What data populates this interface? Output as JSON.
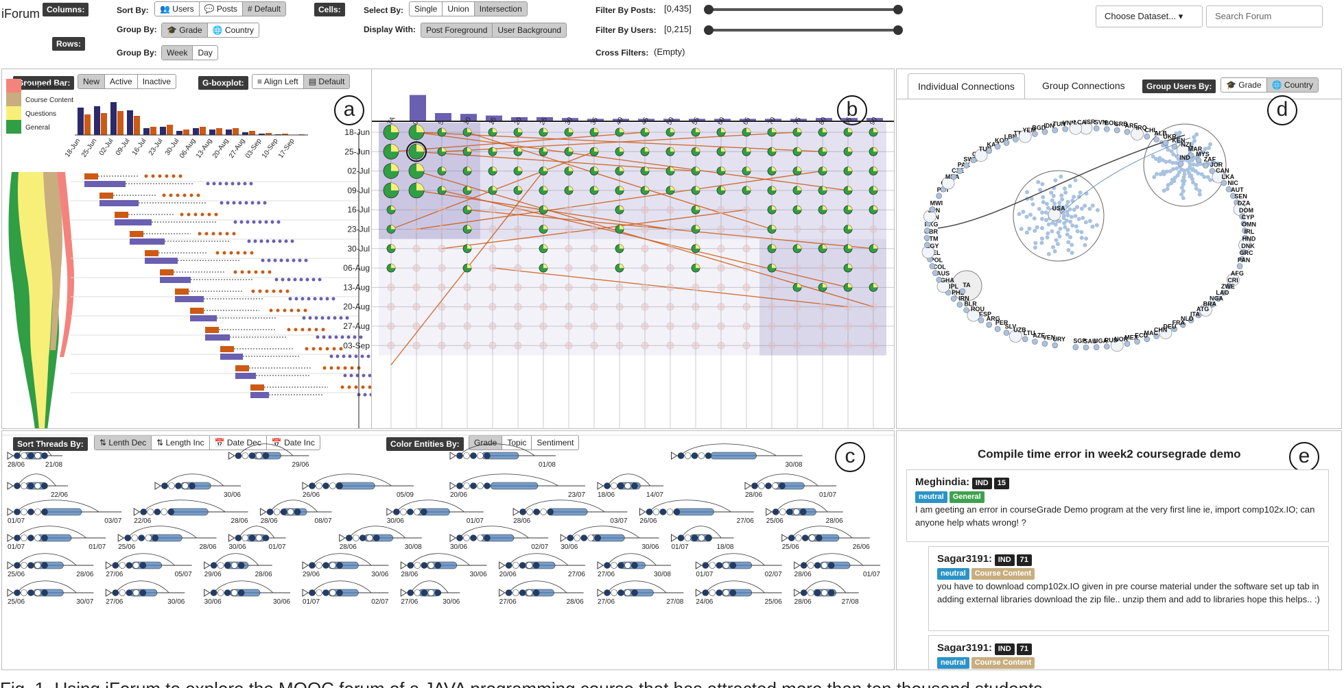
{
  "app": {
    "title": "iForum"
  },
  "toolbar": {
    "columns_tag": "Columns:",
    "rows_tag": "Rows:",
    "cells_tag": "Cells:",
    "sort_by_label": "Sort By:",
    "sort_by": [
      "Users",
      "Posts",
      "# Default"
    ],
    "group_by_label": "Group By:",
    "group_by": [
      "Grade",
      "Country"
    ],
    "row_group_by_label": "Group By:",
    "row_group_by": [
      "Week",
      "Day"
    ],
    "select_by_label": "Select By:",
    "select_by": [
      "Single",
      "Union",
      "Intersection"
    ],
    "display_with_label": "Display With:",
    "display_with": [
      "Post Foreground",
      "User Background"
    ],
    "filter_posts_label": "Filter By Posts:",
    "filter_posts_value": "[0,435]",
    "filter_users_label": "Filter By Users:",
    "filter_users_value": "[0,215]",
    "cross_filters_label": "Cross Filters:",
    "cross_filters_value": "(Empty)",
    "choose_dataset": "Choose Dataset...",
    "search_placeholder": "Search Forum"
  },
  "panel_a": {
    "label": "a",
    "grouped_bar_tag": "Grouped Bar:",
    "grouped_bar_opts": [
      "New",
      "Active",
      "Inactive"
    ],
    "gboxplot_tag": "G-boxplot:",
    "gboxplot_opts": [
      "Align Left",
      "Default"
    ],
    "legend": [
      {
        "name": "Assessment",
        "color": "#f4837d"
      },
      {
        "name": "Course Content",
        "color": "#c8ad7f"
      },
      {
        "name": "Questions",
        "color": "#f8ef78"
      },
      {
        "name": "General",
        "color": "#2f9e44"
      }
    ],
    "week_ticks": [
      "18-Jun",
      "25-Jun",
      "02-Jul",
      "09-Jul",
      "16-Jul",
      "23-Jul",
      "30-Jul",
      "06-Aug",
      "13-Aug",
      "20-Aug",
      "27-Aug",
      "03-Sep",
      "10-Sep",
      "17-Sep"
    ],
    "bars_new": [
      40,
      42,
      48,
      36,
      10,
      12,
      6,
      10,
      8,
      8,
      4,
      2,
      1,
      0
    ],
    "bars_active": [
      30,
      32,
      35,
      28,
      12,
      15,
      8,
      12,
      10,
      10,
      6,
      3,
      2,
      1
    ]
  },
  "panel_b": {
    "label": "b",
    "columns": [
      "TA",
      "0",
      "5",
      "10",
      "15",
      "20",
      "25",
      "30",
      "35",
      "40",
      "45",
      "50",
      "55",
      "60",
      "65",
      "70",
      "75",
      "80",
      "85",
      "90"
    ],
    "col_bars": [
      0,
      32,
      10,
      9,
      7,
      5,
      5,
      4,
      3,
      3,
      3,
      3,
      3,
      3,
      3,
      3,
      3,
      4,
      4,
      4
    ],
    "rows": [
      "18-Jun",
      "25-Jun",
      "02-Jul",
      "09-Jul",
      "16-Jul",
      "23-Jul",
      "30-Jul",
      "06-Aug",
      "13-Aug",
      "20-Aug",
      "27-Aug",
      "03-Sep"
    ]
  },
  "panel_c": {
    "label": "c",
    "sort_threads_tag": "Sort Threads By:",
    "sort_opts": [
      "Lenth Dec",
      "Length Inc",
      "Date Dec",
      "Date Inc"
    ],
    "color_entities_tag": "Color Entities By:",
    "color_opts": [
      "Grade",
      "Topic",
      "Sentiment"
    ],
    "threads": [
      {
        "s": "28/06",
        "e": "21/08"
      },
      {
        "s": "",
        "e": "29/06"
      },
      {
        "s": "",
        "e": "01/08"
      },
      {
        "s": "",
        "e": "30/08"
      },
      {
        "s": "",
        "e": "22/06"
      },
      {
        "s": "",
        "e": "30/06"
      },
      {
        "s": "26/06",
        "e": "05/09"
      },
      {
        "s": "20/06",
        "e": "23/07"
      },
      {
        "s": "18/06",
        "e": "14/07"
      },
      {
        "s": "28/06",
        "e": "01/07"
      },
      {
        "s": "01/07",
        "e": "03/07"
      },
      {
        "s": "22/06",
        "e": "28/06"
      },
      {
        "s": "28/06",
        "e": "08/07"
      },
      {
        "s": "30/06",
        "e": "01/07"
      },
      {
        "s": "28/06",
        "e": "03/07"
      },
      {
        "s": "26/06",
        "e": "27/06"
      },
      {
        "s": "25/06",
        "e": "28/06"
      },
      {
        "s": "01/07",
        "e": "01/07"
      },
      {
        "s": "25/06",
        "e": "28/06"
      },
      {
        "s": "30/06",
        "e": "01/07"
      },
      {
        "s": "28/06",
        "e": "30/08"
      },
      {
        "s": "30/06",
        "e": "02/07"
      },
      {
        "s": "30/06",
        "e": "30/06"
      },
      {
        "s": "01/07",
        "e": "18/08"
      },
      {
        "s": "25/06",
        "e": "26/06"
      },
      {
        "s": "25/06",
        "e": "28/06"
      },
      {
        "s": "27/06",
        "e": "05/07"
      },
      {
        "s": "29/06",
        "e": "28/06"
      },
      {
        "s": "29/06",
        "e": "30/06"
      },
      {
        "s": "28/06",
        "e": "30/06"
      },
      {
        "s": "20/06",
        "e": "27/06"
      },
      {
        "s": "27/06",
        "e": "30/08"
      },
      {
        "s": "01/07",
        "e": "02/07"
      },
      {
        "s": "28/06",
        "e": "01/07"
      },
      {
        "s": "25/06",
        "e": "30/07"
      },
      {
        "s": "27/06",
        "e": "30/06"
      },
      {
        "s": "30/06",
        "e": "30/06"
      },
      {
        "s": "01/07",
        "e": "02/07"
      },
      {
        "s": "27/06",
        "e": "30/06"
      },
      {
        "s": "27/06",
        "e": "28/06"
      },
      {
        "s": "27/06",
        "e": "27/08"
      },
      {
        "s": "24/06",
        "e": "25/06"
      },
      {
        "s": "28/06",
        "e": "27/08"
      }
    ]
  },
  "panel_d": {
    "label": "d",
    "tabs": [
      "Individual Connections",
      "Group Connections"
    ],
    "group_users_tag": "Group Users By:",
    "group_users_opts": [
      "Grade",
      "Country"
    ],
    "countries": [
      "ISR",
      "SVN",
      "BOL",
      "SRB",
      "ARE",
      "IRQ",
      "CHL",
      "ALB",
      "UKR",
      "KEN",
      "NZL",
      "MAR",
      "MYS",
      "ZAF",
      "JOR",
      "CAN",
      "LKA",
      "NIC",
      "AUT",
      "SEN",
      "DZA",
      "DOM",
      "CYP",
      "OMN",
      "IRL",
      "HND",
      "DNK",
      "GRC",
      "PAN",
      "IND",
      "AFG",
      "CRI",
      "ZWE",
      "LAO",
      "NGA",
      "BRA",
      "ATG",
      "ITA",
      "NLD",
      "FRA",
      "DEU",
      "CHN",
      "MAC",
      "ECU",
      "MEX",
      "NOR",
      "RUS",
      "UGA",
      "SAU",
      "SGP",
      "USA",
      "URY",
      "VEN",
      "AZE",
      "LTU",
      "UZB",
      "SLV",
      "PER",
      "ARG",
      "ESP",
      "ROU",
      "BLR",
      "IRN",
      "PHL",
      "NPL",
      "GHA",
      "AUS",
      "COL",
      "POL",
      "BEL",
      "EGY",
      "GTM",
      "GBR",
      "HKG",
      "HUN",
      "JPN",
      "MWI",
      "TA",
      "PRT",
      "CHE",
      "MDA",
      "CZE",
      "PAK",
      "SWE",
      "GIN",
      "TUR",
      "KAZ",
      "KOR",
      "LBN",
      "TTO",
      "YEM",
      "BGD",
      "IDN",
      "TUN",
      "VNM",
      "LCA"
    ]
  },
  "panel_e": {
    "label": "e",
    "thread_title": "Compile time error in week2 coursegrade demo",
    "posts": [
      {
        "user": "Meghindia:",
        "country": "IND",
        "grade": "15",
        "sentiment": "neutral",
        "topic": "General",
        "text": "I am geeting an error in courseGrade Demo program at the very first line ie, import comp102x.IO; can anyone help whats wrong! ?"
      },
      {
        "user": "Sagar3191:",
        "country": "IND",
        "grade": "71",
        "sentiment": "neutral",
        "topic": "Course Content",
        "text": "you have to download comp102x.IO given in pre course material under the software set up tab in adding external libraries download the zip file.. unzip them and add to libraries hope this helps.. :)"
      },
      {
        "user": "Sagar3191:",
        "country": "IND",
        "grade": "71",
        "sentiment": "neutral",
        "topic": "Course Content",
        "text": ""
      }
    ]
  },
  "colors": {
    "purple": "#6a5fb0",
    "orange": "#cc5a14",
    "green": "#2f9e44",
    "yellow": "#f8ef78",
    "navy": "#2b2a6b",
    "blue": "#4a7cb5",
    "neutral_badge": "#2b93c8",
    "general_badge": "#3ea24e",
    "content_badge": "#c8ad7f"
  },
  "caption": "Fig. 1. Using iForum to explore the MOOC forum of a JAVA programming course that has attracted more than ten thousand students"
}
